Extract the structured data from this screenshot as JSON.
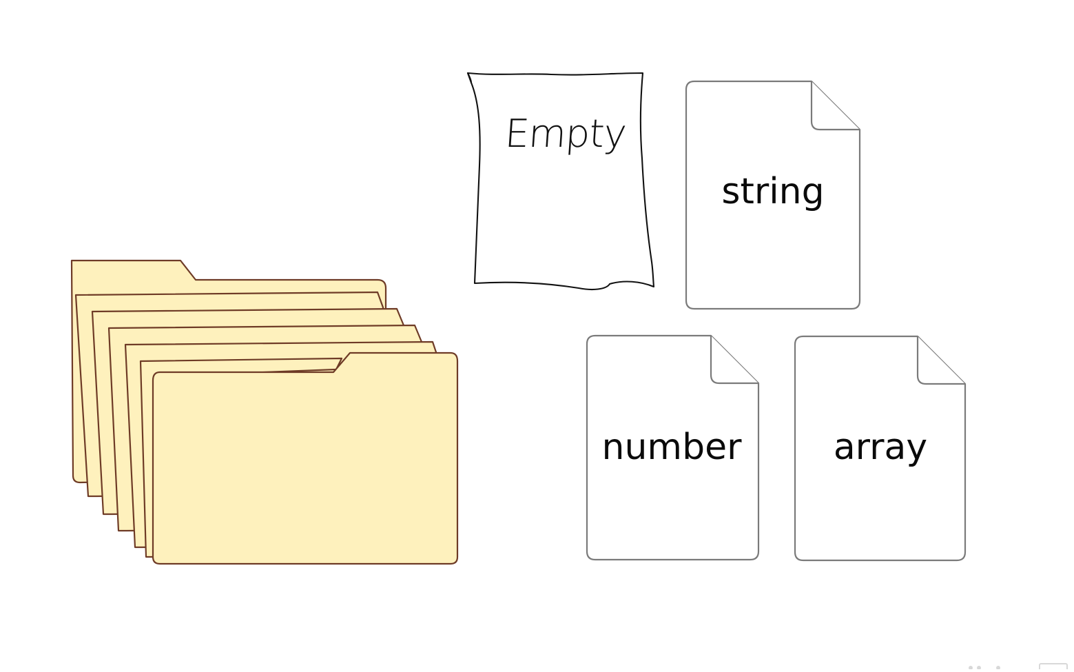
{
  "items": {
    "empty_label": "Empty",
    "string_label": "string",
    "number_label": "number",
    "array_label": "array"
  },
  "colors": {
    "folder_fill": "#fef1bd",
    "folder_stroke": "#6e3b26",
    "doc_stroke": "#7a7a7a"
  },
  "icons": {
    "folders": "folder-stack-icon",
    "empty": "hand-drawn-empty-box-icon",
    "document": "document-icon"
  }
}
